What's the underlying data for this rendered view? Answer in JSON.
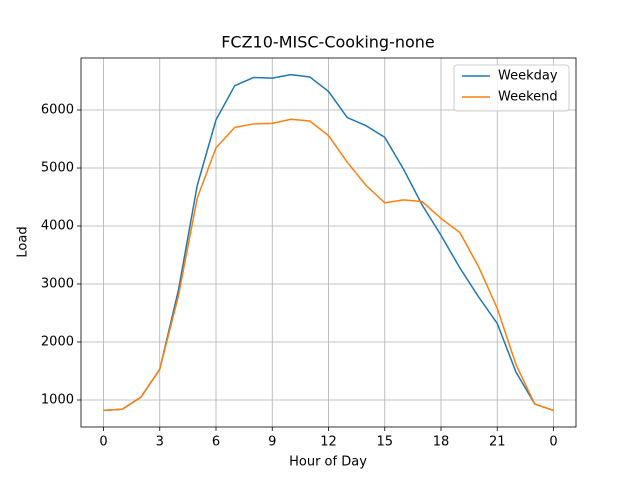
{
  "chart_data": {
    "type": "line",
    "title": "FCZ10-MISC-Cooking-none",
    "x_label": "Hour of Day",
    "y_label": "Load",
    "x": [
      0,
      1,
      2,
      3,
      4,
      5,
      6,
      7,
      8,
      9,
      10,
      11,
      12,
      13,
      14,
      15,
      16,
      17,
      18,
      19,
      20,
      21,
      22,
      23,
      24
    ],
    "series": [
      {
        "name": "Weekday",
        "color": "#1f77b4",
        "values": [
          820,
          840,
          1050,
          1530,
          2900,
          4700,
          5830,
          6420,
          6560,
          6550,
          6610,
          6570,
          6320,
          5870,
          5730,
          5530,
          4980,
          4360,
          3840,
          3280,
          2780,
          2320,
          1480,
          930,
          820
        ]
      },
      {
        "name": "Weekend",
        "color": "#ff7f0e",
        "values": [
          820,
          840,
          1050,
          1530,
          2800,
          4480,
          5350,
          5700,
          5760,
          5770,
          5840,
          5810,
          5560,
          5100,
          4700,
          4400,
          4450,
          4420,
          4130,
          3890,
          3300,
          2580,
          1610,
          930,
          820
        ]
      }
    ],
    "xlim": [
      -1.2,
      25.2
    ],
    "ylim": [
      534,
      6897
    ],
    "xticks": [
      0,
      3,
      6,
      9,
      12,
      15,
      18,
      21,
      {
        "value": 24,
        "label": "0"
      }
    ],
    "yticks": [
      1000,
      2000,
      3000,
      4000,
      5000,
      6000
    ],
    "grid": true,
    "legend": "upper right"
  }
}
